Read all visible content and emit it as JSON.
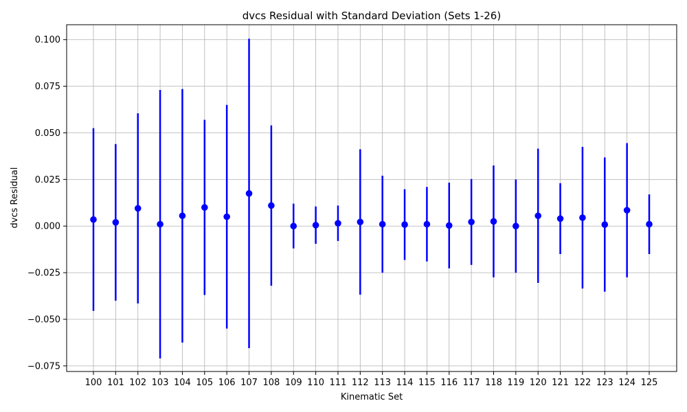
{
  "chart_data": {
    "type": "scatter",
    "title": "dvcs Residual with Standard Deviation (Sets 1-26)",
    "xlabel": "Kinematic Set",
    "ylabel": "dvcs Residual",
    "ylim": [
      -0.078,
      0.108
    ],
    "yticks": [
      -0.075,
      -0.05,
      -0.025,
      0.0,
      0.025,
      0.05,
      0.075,
      0.1
    ],
    "ytick_labels": [
      "−0.075",
      "−0.050",
      "−0.025",
      "0.000",
      "0.025",
      "0.050",
      "0.075",
      "0.100"
    ],
    "grid": true,
    "marker_color": "#0000ff",
    "categories": [
      "100",
      "101",
      "102",
      "103",
      "104",
      "105",
      "106",
      "107",
      "108",
      "109",
      "110",
      "111",
      "112",
      "113",
      "114",
      "115",
      "116",
      "117",
      "118",
      "119",
      "120",
      "121",
      "122",
      "123",
      "124",
      "125"
    ],
    "values": [
      0.0035,
      0.002,
      0.0095,
      0.001,
      0.0055,
      0.01,
      0.005,
      0.0175,
      0.011,
      0.0,
      0.0005,
      0.0015,
      0.0022,
      0.001,
      0.0008,
      0.001,
      0.0003,
      0.0022,
      0.0025,
      0.0,
      0.0055,
      0.004,
      0.0045,
      0.0008,
      0.0085,
      0.001
    ],
    "errors": [
      0.049,
      0.042,
      0.051,
      0.072,
      0.068,
      0.047,
      0.06,
      0.083,
      0.043,
      0.012,
      0.01,
      0.0095,
      0.039,
      0.026,
      0.019,
      0.02,
      0.023,
      0.023,
      0.03,
      0.025,
      0.036,
      0.019,
      0.038,
      0.036,
      0.036,
      0.016
    ]
  }
}
